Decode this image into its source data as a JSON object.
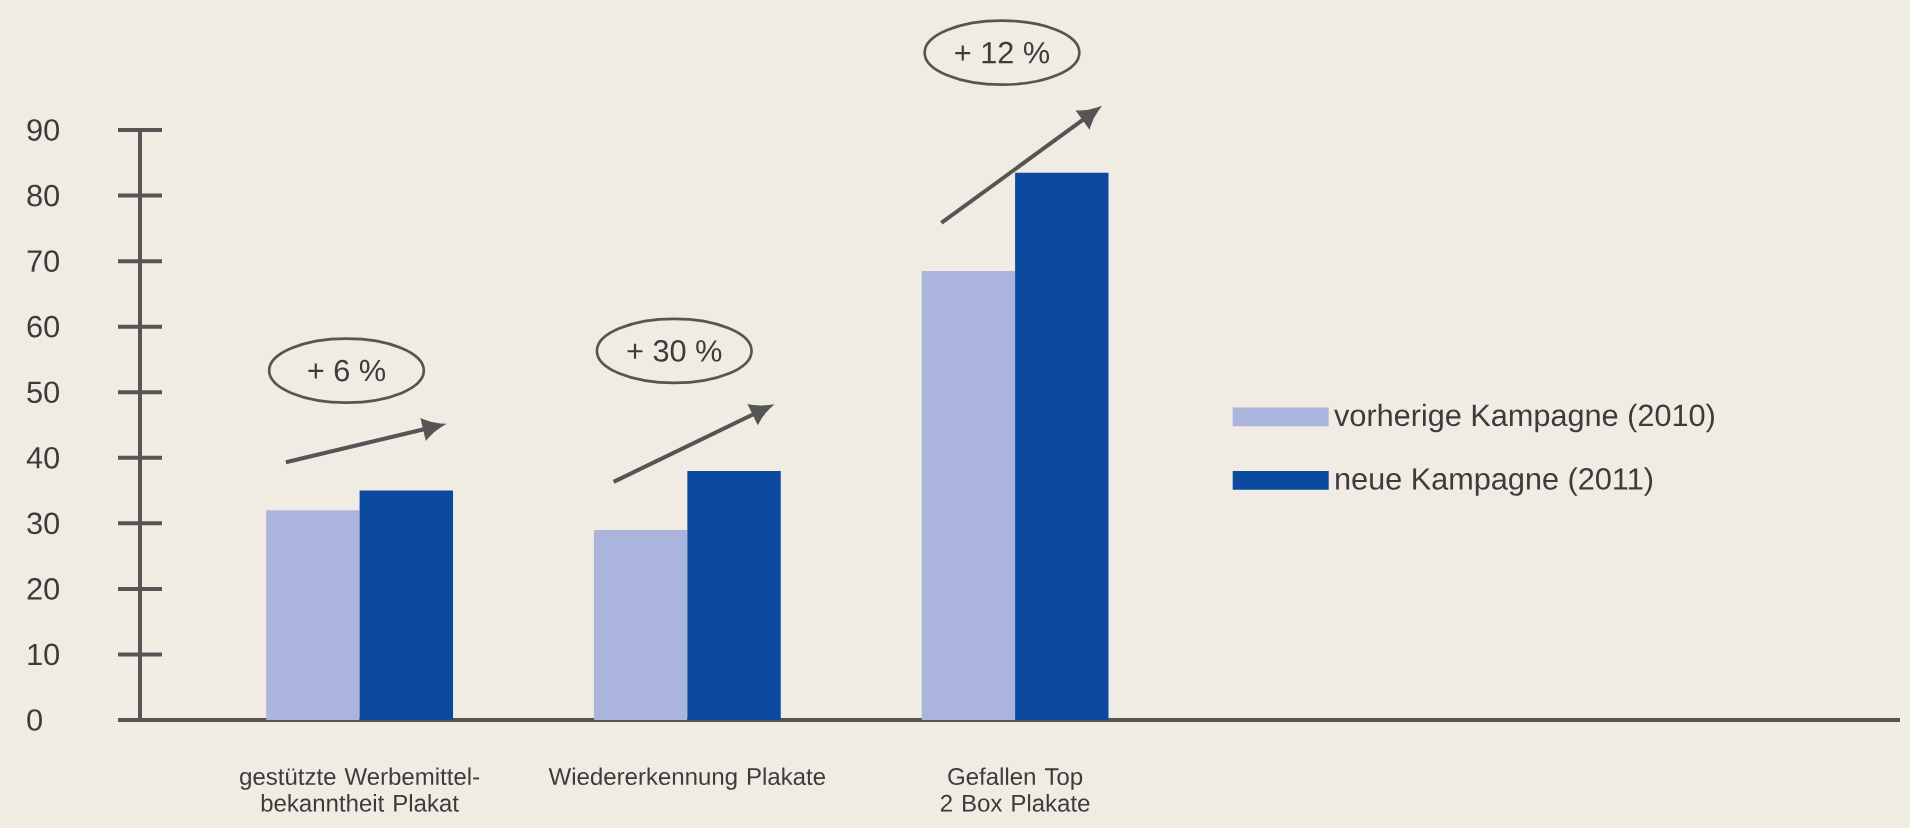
{
  "chart_data": {
    "type": "bar",
    "categories": [
      "gestützte Werbemittel-bekanntheit Plakat",
      "Wiedererkennung Plakate",
      "Gefallen Top 2 Box Plakate"
    ],
    "series": [
      {
        "name": "vorherige Kampagne (2010)",
        "color": "#aab4dc",
        "values": [
          32,
          29,
          68.5
        ]
      },
      {
        "name": "neue Kampagne (2011)",
        "color": "#0b4a9e",
        "values": [
          35,
          38,
          83.5
        ]
      }
    ],
    "ylim": [
      0,
      90
    ],
    "yticks": [
      0,
      10,
      20,
      30,
      40,
      50,
      60,
      70,
      80,
      90
    ],
    "annotations": [
      "+ 6 %",
      "+ 30 %",
      "+ 12 %"
    ],
    "legend": "right",
    "grid": false
  }
}
